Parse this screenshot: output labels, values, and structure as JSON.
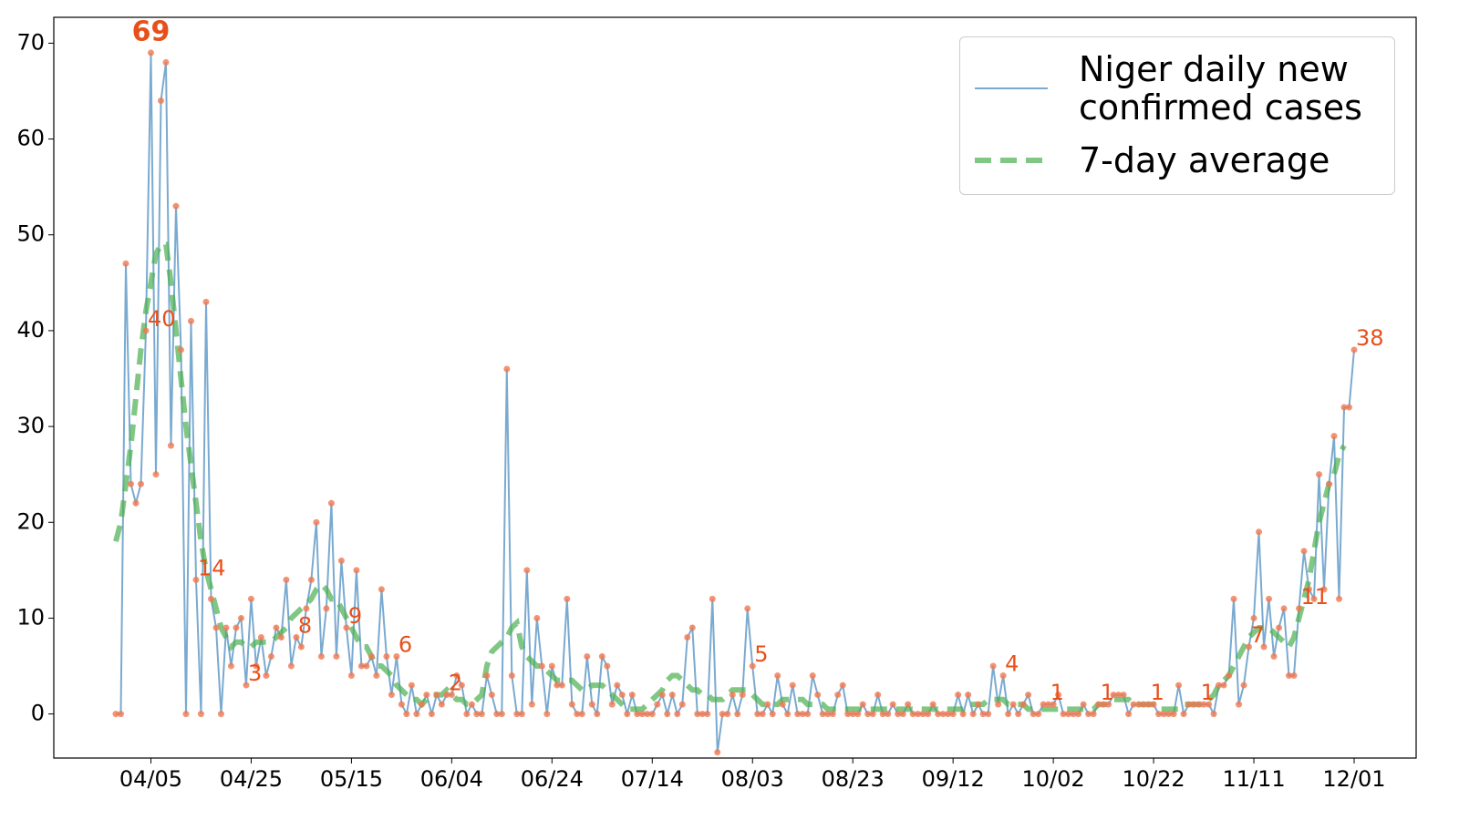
{
  "chart_data": {
    "type": "line",
    "x": [
      "03/29",
      "03/30",
      "03/31",
      "04/01",
      "04/02",
      "04/03",
      "04/04",
      "04/05",
      "04/06",
      "04/07",
      "04/08",
      "04/09",
      "04/10",
      "04/11",
      "04/12",
      "04/13",
      "04/14",
      "04/15",
      "04/16",
      "04/17",
      "04/18",
      "04/19",
      "04/20",
      "04/21",
      "04/22",
      "04/23",
      "04/24",
      "04/25",
      "04/26",
      "04/27",
      "04/28",
      "04/29",
      "04/30",
      "05/01",
      "05/02",
      "05/03",
      "05/04",
      "05/05",
      "05/06",
      "05/07",
      "05/08",
      "05/09",
      "05/10",
      "05/11",
      "05/12",
      "05/13",
      "05/14",
      "05/15",
      "05/16",
      "05/17",
      "05/18",
      "05/19",
      "05/20",
      "05/21",
      "05/22",
      "05/23",
      "05/24",
      "05/25",
      "05/26",
      "05/27",
      "05/28",
      "05/29",
      "05/30",
      "05/31",
      "06/01",
      "06/02",
      "06/03",
      "06/04",
      "06/05",
      "06/06",
      "06/07",
      "06/08",
      "06/09",
      "06/10",
      "06/11",
      "06/12",
      "06/13",
      "06/14",
      "06/15",
      "06/16",
      "06/17",
      "06/18",
      "06/19",
      "06/20",
      "06/21",
      "06/22",
      "06/23",
      "06/24",
      "06/25",
      "06/26",
      "06/27",
      "06/28",
      "06/29",
      "06/30",
      "07/01",
      "07/02",
      "07/03",
      "07/04",
      "07/05",
      "07/06",
      "07/07",
      "07/08",
      "07/09",
      "07/10",
      "07/11",
      "07/12",
      "07/13",
      "07/14",
      "07/15",
      "07/16",
      "07/17",
      "07/18",
      "07/19",
      "07/20",
      "07/21",
      "07/22",
      "07/23",
      "07/24",
      "07/25",
      "07/26",
      "07/27",
      "07/28",
      "07/29",
      "07/30",
      "07/31",
      "08/01",
      "08/02",
      "08/03",
      "08/04",
      "08/05",
      "08/06",
      "08/07",
      "08/08",
      "08/09",
      "08/10",
      "08/11",
      "08/12",
      "08/13",
      "08/14",
      "08/15",
      "08/16",
      "08/17",
      "08/18",
      "08/19",
      "08/20",
      "08/21",
      "08/22",
      "08/23",
      "08/24",
      "08/25",
      "08/26",
      "08/27",
      "08/28",
      "08/29",
      "08/30",
      "08/31",
      "09/01",
      "09/02",
      "09/03",
      "09/04",
      "09/05",
      "09/06",
      "09/07",
      "09/08",
      "09/09",
      "09/10",
      "09/11",
      "09/12",
      "09/13",
      "09/14",
      "09/15",
      "09/16",
      "09/17",
      "09/18",
      "09/19",
      "09/20",
      "09/21",
      "09/22",
      "09/23",
      "09/24",
      "09/25",
      "09/26",
      "09/27",
      "09/28",
      "09/29",
      "09/30",
      "10/01",
      "10/02",
      "10/03",
      "10/04",
      "10/05",
      "10/06",
      "10/07",
      "10/08",
      "10/09",
      "10/10",
      "10/11",
      "10/12",
      "10/13",
      "10/14",
      "10/15",
      "10/16",
      "10/17",
      "10/18",
      "10/19",
      "10/20",
      "10/21",
      "10/22",
      "10/23",
      "10/24",
      "10/25",
      "10/26",
      "10/27",
      "10/28",
      "10/29",
      "10/30",
      "10/31",
      "11/01",
      "11/02",
      "11/03",
      "11/04",
      "11/05",
      "11/06",
      "11/07",
      "11/08",
      "11/09",
      "11/10",
      "11/11",
      "11/12",
      "11/13",
      "11/14",
      "11/15",
      "11/16",
      "11/17",
      "11/18",
      "11/19",
      "11/20",
      "11/21",
      "11/22",
      "11/23",
      "11/24",
      "11/25",
      "11/26",
      "11/27",
      "11/28",
      "11/29",
      "11/30",
      "12/01"
    ],
    "series": [
      {
        "name": "Niger daily new confirmed cases",
        "color": "#7aaad0",
        "marker_color": "#f07850",
        "label_color": "#e8501a",
        "values": [
          0,
          0,
          47,
          24,
          22,
          24,
          40,
          69,
          25,
          64,
          68,
          28,
          53,
          38,
          0,
          41,
          14,
          0,
          43,
          12,
          9,
          0,
          9,
          5,
          9,
          10,
          3,
          12,
          5,
          8,
          4,
          6,
          9,
          8,
          14,
          5,
          8,
          7,
          11,
          14,
          20,
          6,
          11,
          22,
          6,
          16,
          9,
          4,
          15,
          5,
          5,
          6,
          4,
          13,
          6,
          2,
          6,
          1,
          0,
          3,
          0,
          1,
          2,
          0,
          2,
          1,
          2,
          2,
          4,
          3,
          0,
          1,
          0,
          0,
          4,
          2,
          0,
          0,
          36,
          4,
          0,
          0,
          15,
          1,
          10,
          5,
          0,
          5,
          3,
          3,
          12,
          1,
          0,
          0,
          6,
          1,
          0,
          6,
          5,
          1,
          3,
          2,
          0,
          2,
          0,
          0,
          0,
          0,
          1,
          2,
          0,
          2,
          0,
          1,
          8,
          9,
          0,
          0,
          0,
          12,
          -4,
          0,
          0,
          2,
          0,
          2,
          11,
          5,
          0,
          0,
          1,
          0,
          4,
          1,
          0,
          3,
          0,
          0,
          0,
          4,
          2,
          0,
          0,
          0,
          2,
          3,
          0,
          0,
          0,
          1,
          0,
          0,
          2,
          0,
          0,
          1,
          0,
          0,
          1,
          0,
          0,
          0,
          0,
          1,
          0,
          0,
          0,
          0,
          2,
          0,
          2,
          0,
          1,
          0,
          0,
          5,
          1,
          4,
          0,
          1,
          0,
          1,
          2,
          0,
          0,
          1,
          1,
          1,
          2,
          0,
          0,
          0,
          0,
          1,
          0,
          0,
          1,
          1,
          1,
          2,
          2,
          2,
          0,
          1,
          1,
          1,
          1,
          1,
          0,
          0,
          0,
          0,
          3,
          0,
          1,
          1,
          1,
          1,
          1,
          0,
          3,
          3,
          4,
          12,
          1,
          3,
          7,
          10,
          19,
          7,
          12,
          6,
          9,
          11,
          4,
          4,
          11,
          17,
          13,
          12,
          25,
          13,
          24,
          29,
          12,
          32,
          32,
          38
        ],
        "value_labels": [
          null,
          null,
          null,
          null,
          null,
          null,
          "40",
          "69",
          null,
          null,
          null,
          null,
          null,
          null,
          null,
          null,
          "14",
          null,
          null,
          null,
          null,
          null,
          null,
          null,
          null,
          null,
          "3",
          null,
          null,
          null,
          null,
          null,
          null,
          null,
          null,
          null,
          "8",
          null,
          null,
          null,
          null,
          null,
          null,
          null,
          null,
          null,
          "9",
          null,
          null,
          null,
          null,
          null,
          null,
          null,
          null,
          null,
          "6",
          null,
          null,
          null,
          null,
          null,
          null,
          null,
          null,
          null,
          "2",
          null,
          null,
          null,
          null,
          null,
          null,
          null,
          null,
          null,
          null,
          null,
          null,
          null,
          null,
          null,
          null,
          null,
          null,
          null,
          null,
          null,
          null,
          null,
          null,
          null,
          null,
          null,
          null,
          null,
          null,
          null,
          null,
          null,
          null,
          null,
          null,
          null,
          null,
          null,
          null,
          null,
          null,
          null,
          null,
          null,
          null,
          null,
          null,
          null,
          null,
          null,
          null,
          null,
          null,
          null,
          null,
          null,
          null,
          null,
          null,
          "5",
          null,
          null,
          null,
          null,
          null,
          null,
          null,
          null,
          null,
          null,
          null,
          null,
          null,
          null,
          null,
          null,
          null,
          null,
          null,
          null,
          null,
          null,
          null,
          null,
          null,
          null,
          null,
          null,
          null,
          null,
          null,
          null,
          null,
          null,
          null,
          null,
          null,
          null,
          null,
          null,
          null,
          null,
          null,
          null,
          null,
          null,
          null,
          null,
          null,
          "4",
          null,
          null,
          null,
          null,
          null,
          null,
          null,
          null,
          "1",
          null,
          null,
          null,
          null,
          null,
          null,
          null,
          null,
          null,
          "1",
          null,
          null,
          null,
          null,
          null,
          null,
          null,
          null,
          null,
          "1",
          null,
          null,
          null,
          null,
          null,
          null,
          null,
          null,
          null,
          "1",
          null,
          null,
          null,
          null,
          null,
          null,
          null,
          null,
          null,
          "7",
          null,
          null,
          null,
          null,
          null,
          null,
          null,
          null,
          null,
          "11",
          null,
          null,
          null,
          null,
          null,
          null,
          null,
          null,
          null,
          null,
          "38"
        ]
      },
      {
        "name": "7-day average",
        "color": "#4caf50",
        "dashed": true,
        "values": [
          18,
          20,
          24,
          28,
          33,
          38,
          42,
          45,
          48,
          49,
          49,
          45,
          40,
          35,
          30,
          26,
          22,
          18,
          15,
          13,
          11,
          9,
          8,
          7,
          7.5,
          7.5,
          7,
          7,
          7.5,
          7.5,
          7.5,
          7.5,
          8,
          8.5,
          9,
          10,
          10.5,
          11,
          11.5,
          12,
          13,
          13.5,
          13,
          12,
          12,
          11,
          10,
          9,
          8,
          7,
          7,
          6,
          5,
          5,
          4.5,
          4,
          3,
          2.5,
          2,
          1.5,
          1.5,
          1,
          1.5,
          2,
          2,
          2,
          2.5,
          2,
          1.5,
          1.5,
          1,
          1,
          1.5,
          2,
          5,
          6.5,
          7,
          7.5,
          8,
          9,
          9.5,
          7,
          6,
          5.5,
          5,
          5,
          4.5,
          4,
          3.5,
          3.5,
          3.5,
          3.5,
          3,
          2.5,
          2.5,
          3,
          3,
          3,
          2.5,
          2,
          1.5,
          1,
          0.5,
          0.5,
          0.5,
          0.5,
          1,
          1.5,
          2,
          2.5,
          3.5,
          4,
          4,
          3.5,
          3,
          2.5,
          2.5,
          2,
          2,
          1.5,
          1.5,
          1.5,
          2,
          2.5,
          2.5,
          2.5,
          2.5,
          2,
          1.5,
          1,
          1,
          1,
          1,
          1.5,
          1.5,
          1.5,
          1.5,
          1.5,
          1,
          1,
          1,
          1,
          0.5,
          0.5,
          0.5,
          0.5,
          0.5,
          0.5,
          0.5,
          0.5,
          0.5,
          0.5,
          0.5,
          0.5,
          0.5,
          0.5,
          0.5,
          0.5,
          0.5,
          0.5,
          0.5,
          0.5,
          0.5,
          0.5,
          0.5,
          0.5,
          0.5,
          0.5,
          0.5,
          0.5,
          1,
          1,
          1,
          1,
          1.5,
          1.5,
          1.5,
          1.5,
          1,
          1,
          1,
          1,
          0.5,
          0.5,
          0.5,
          0.5,
          0.5,
          0.5,
          0.5,
          0.5,
          0.5,
          0.5,
          0.5,
          0.5,
          0.5,
          0.5,
          1,
          1,
          1,
          1.5,
          1.5,
          1.5,
          1.5,
          1,
          1,
          1,
          1,
          1,
          0.5,
          0.5,
          0.5,
          0.5,
          0.5,
          1,
          1,
          1,
          1,
          1,
          1.5,
          2,
          3,
          3.5,
          4,
          5,
          6,
          7,
          8,
          8.5,
          9,
          9,
          9,
          8.5,
          8,
          7.5,
          7,
          8,
          10,
          12,
          14,
          17,
          20,
          22,
          24,
          25,
          27,
          28,
          null,
          null
        ]
      }
    ],
    "xticks": [
      "04/05",
      "04/25",
      "05/15",
      "06/04",
      "06/24",
      "07/14",
      "08/03",
      "08/23",
      "09/12",
      "10/02",
      "10/22",
      "11/11",
      "12/01"
    ],
    "ylim": [
      -4.6,
      72.7
    ],
    "yticks": [
      0,
      10,
      20,
      30,
      40,
      50,
      60,
      70
    ],
    "legend": "upper right"
  }
}
